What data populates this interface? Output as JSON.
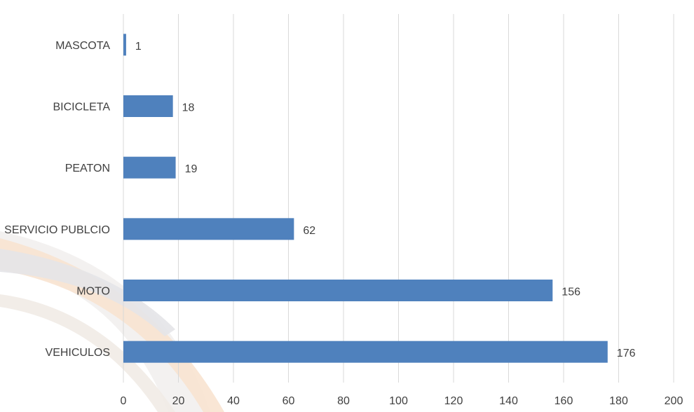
{
  "chart_data": {
    "type": "bar",
    "orientation": "horizontal",
    "title": "",
    "xlabel": "",
    "ylabel": "",
    "categories": [
      "MASCOTA",
      "BICICLETA",
      "PEATON",
      "SERVICIO PUBLCIO",
      "MOTO",
      "VEHICULOS"
    ],
    "values": [
      1,
      18,
      19,
      62,
      156,
      176
    ],
    "xlim": [
      0,
      200
    ],
    "x_ticks": [
      0,
      20,
      40,
      60,
      80,
      100,
      120,
      140,
      160,
      180,
      200
    ],
    "grid": "vertical",
    "data_labels": true,
    "legend": "none",
    "colors": {
      "bar": "#4f81bd",
      "grid": "#d9d9d9",
      "text": "#404040",
      "background_arc_gray": "#e6e6e9",
      "background_arc_orange": "#f6dcc4"
    }
  }
}
